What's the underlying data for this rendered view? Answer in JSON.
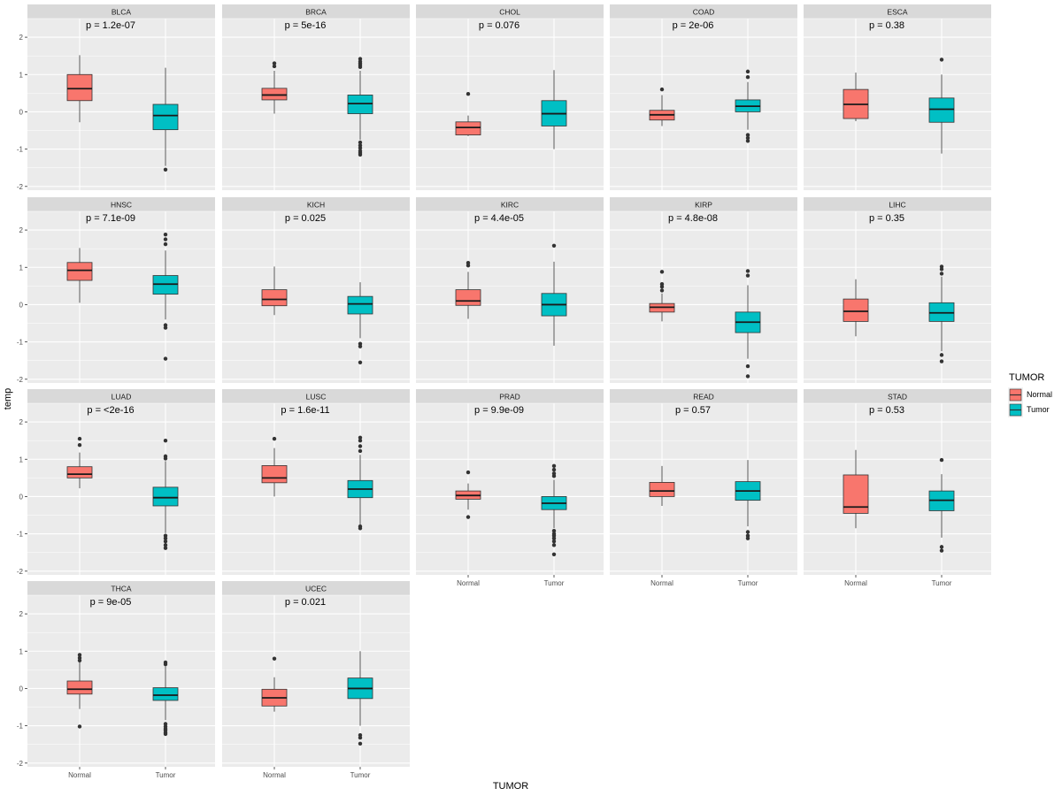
{
  "chart_data": {
    "type": "boxplot-facets",
    "y_axis_label": "temp",
    "x_axis_label": "TUMOR",
    "ylim": [
      -2.1,
      2.5
    ],
    "y_ticks": [
      -2,
      -1,
      0,
      1,
      2
    ],
    "categories": [
      "Normal",
      "Tumor"
    ],
    "legend": {
      "title": "TUMOR",
      "placement": "right",
      "items": [
        {
          "label": "Normal",
          "color": "#F8766D"
        },
        {
          "label": "Tumor",
          "color": "#00BFC4"
        }
      ]
    },
    "panels": [
      {
        "name": "BLCA",
        "pvalue": "p = 1.2e-07",
        "boxes": [
          {
            "group": "Normal",
            "min": -0.28,
            "q1": 0.3,
            "median": 0.62,
            "q3": 1.0,
            "max": 1.52,
            "outliers": []
          },
          {
            "group": "Tumor",
            "min": -1.45,
            "q1": -0.48,
            "median": -0.1,
            "q3": 0.2,
            "max": 1.18,
            "outliers": [
              -1.55
            ]
          }
        ]
      },
      {
        "name": "BRCA",
        "pvalue": "p = 5e-16",
        "boxes": [
          {
            "group": "Normal",
            "min": -0.05,
            "q1": 0.32,
            "median": 0.45,
            "q3": 0.63,
            "max": 1.1,
            "outliers": [
              1.22,
              1.3
            ]
          },
          {
            "group": "Tumor",
            "min": -0.75,
            "q1": -0.05,
            "median": 0.22,
            "q3": 0.45,
            "max": 1.1,
            "outliers": [
              1.2,
              1.25,
              1.3,
              1.35,
              1.42,
              -0.82,
              -0.9,
              -0.97,
              -1.05,
              -1.1,
              -1.15
            ]
          }
        ]
      },
      {
        "name": "CHOL",
        "pvalue": "p = 0.076",
        "boxes": [
          {
            "group": "Normal",
            "min": -0.65,
            "q1": -0.62,
            "median": -0.42,
            "q3": -0.27,
            "max": -0.1,
            "outliers": [
              0.48
            ]
          },
          {
            "group": "Tumor",
            "min": -1.0,
            "q1": -0.38,
            "median": -0.05,
            "q3": 0.3,
            "max": 1.12,
            "outliers": []
          }
        ]
      },
      {
        "name": "COAD",
        "pvalue": "p = 2e-06",
        "boxes": [
          {
            "group": "Normal",
            "min": -0.38,
            "q1": -0.22,
            "median": -0.08,
            "q3": 0.04,
            "max": 0.45,
            "outliers": [
              0.6
            ]
          },
          {
            "group": "Tumor",
            "min": -0.48,
            "q1": 0.0,
            "median": 0.15,
            "q3": 0.32,
            "max": 0.8,
            "outliers": [
              0.93,
              1.08,
              -0.62,
              -0.7,
              -0.78
            ]
          }
        ]
      },
      {
        "name": "ESCA",
        "pvalue": "p = 0.38",
        "boxes": [
          {
            "group": "Normal",
            "min": -0.25,
            "q1": -0.18,
            "median": 0.2,
            "q3": 0.6,
            "max": 1.05,
            "outliers": []
          },
          {
            "group": "Tumor",
            "min": -1.12,
            "q1": -0.28,
            "median": 0.07,
            "q3": 0.37,
            "max": 1.0,
            "outliers": [
              1.4
            ]
          }
        ]
      },
      {
        "name": "HNSC",
        "pvalue": "p = 7.1e-09",
        "boxes": [
          {
            "group": "Normal",
            "min": 0.05,
            "q1": 0.65,
            "median": 0.92,
            "q3": 1.13,
            "max": 1.52,
            "outliers": []
          },
          {
            "group": "Tumor",
            "min": -0.4,
            "q1": 0.28,
            "median": 0.55,
            "q3": 0.78,
            "max": 1.45,
            "outliers": [
              1.62,
              1.75,
              1.88,
              -0.55,
              -0.62,
              -1.45
            ]
          }
        ]
      },
      {
        "name": "KICH",
        "pvalue": "p = 0.025",
        "boxes": [
          {
            "group": "Normal",
            "min": -0.28,
            "q1": -0.03,
            "median": 0.14,
            "q3": 0.4,
            "max": 1.02,
            "outliers": []
          },
          {
            "group": "Tumor",
            "min": -0.9,
            "q1": -0.25,
            "median": 0.02,
            "q3": 0.22,
            "max": 0.6,
            "outliers": [
              -1.05,
              -1.12,
              -1.55
            ]
          }
        ]
      },
      {
        "name": "KIRC",
        "pvalue": "p = 4.4e-05",
        "boxes": [
          {
            "group": "Normal",
            "min": -0.38,
            "q1": -0.02,
            "median": 0.1,
            "q3": 0.4,
            "max": 0.88,
            "outliers": [
              1.05,
              1.12
            ]
          },
          {
            "group": "Tumor",
            "min": -1.1,
            "q1": -0.3,
            "median": 0.0,
            "q3": 0.3,
            "max": 1.15,
            "outliers": [
              1.58
            ]
          }
        ]
      },
      {
        "name": "KIRP",
        "pvalue": "p = 4.8e-08",
        "boxes": [
          {
            "group": "Normal",
            "min": -0.45,
            "q1": -0.2,
            "median": -0.07,
            "q3": 0.03,
            "max": 0.3,
            "outliers": [
              0.38,
              0.48,
              0.55,
              0.88
            ]
          },
          {
            "group": "Tumor",
            "min": -1.45,
            "q1": -0.75,
            "median": -0.47,
            "q3": -0.2,
            "max": 0.52,
            "outliers": [
              0.78,
              0.9,
              -1.65,
              -1.92
            ]
          }
        ]
      },
      {
        "name": "LIHC",
        "pvalue": "p = 0.35",
        "boxes": [
          {
            "group": "Normal",
            "min": -0.85,
            "q1": -0.45,
            "median": -0.18,
            "q3": 0.15,
            "max": 0.68,
            "outliers": []
          },
          {
            "group": "Tumor",
            "min": -1.25,
            "q1": -0.45,
            "median": -0.22,
            "q3": 0.05,
            "max": 0.75,
            "outliers": [
              0.83,
              0.95,
              1.02,
              -1.35,
              -1.52
            ]
          }
        ]
      },
      {
        "name": "LUAD",
        "pvalue": "p = <2e-16",
        "boxes": [
          {
            "group": "Normal",
            "min": 0.22,
            "q1": 0.5,
            "median": 0.6,
            "q3": 0.8,
            "max": 1.18,
            "outliers": [
              1.38,
              1.55
            ]
          },
          {
            "group": "Tumor",
            "min": -0.98,
            "q1": -0.25,
            "median": -0.03,
            "q3": 0.25,
            "max": 0.95,
            "outliers": [
              1.02,
              1.08,
              1.5,
              -1.05,
              -1.12,
              -1.2,
              -1.3,
              -1.38
            ]
          }
        ]
      },
      {
        "name": "LUSC",
        "pvalue": "p = 1.6e-11",
        "boxes": [
          {
            "group": "Normal",
            "min": 0.0,
            "q1": 0.37,
            "median": 0.5,
            "q3": 0.83,
            "max": 1.3,
            "outliers": [
              1.55
            ]
          },
          {
            "group": "Tumor",
            "min": -0.75,
            "q1": -0.03,
            "median": 0.2,
            "q3": 0.43,
            "max": 1.12,
            "outliers": [
              1.22,
              1.35,
              1.5,
              1.58,
              -0.8,
              -0.85
            ]
          }
        ]
      },
      {
        "name": "PRAD",
        "pvalue": "p = 9.9e-09",
        "boxes": [
          {
            "group": "Normal",
            "min": -0.35,
            "q1": -0.07,
            "median": 0.03,
            "q3": 0.15,
            "max": 0.35,
            "outliers": [
              0.65,
              -0.55
            ]
          },
          {
            "group": "Tumor",
            "min": -0.85,
            "q1": -0.35,
            "median": -0.18,
            "q3": 0.0,
            "max": 0.45,
            "outliers": [
              0.55,
              0.62,
              0.72,
              0.82,
              -0.92,
              -1.0,
              -1.05,
              -1.12,
              -1.2,
              -1.3,
              -1.55
            ]
          }
        ]
      },
      {
        "name": "READ",
        "pvalue": "p = 0.57",
        "boxes": [
          {
            "group": "Normal",
            "min": -0.25,
            "q1": 0.0,
            "median": 0.15,
            "q3": 0.38,
            "max": 0.82,
            "outliers": []
          },
          {
            "group": "Tumor",
            "min": -0.8,
            "q1": -0.1,
            "median": 0.15,
            "q3": 0.4,
            "max": 0.98,
            "outliers": [
              -0.95,
              -1.05,
              -1.12
            ]
          }
        ]
      },
      {
        "name": "STAD",
        "pvalue": "p = 0.53",
        "boxes": [
          {
            "group": "Normal",
            "min": -0.85,
            "q1": -0.45,
            "median": -0.28,
            "q3": 0.58,
            "max": 1.25,
            "outliers": []
          },
          {
            "group": "Tumor",
            "min": -1.1,
            "q1": -0.38,
            "median": -0.1,
            "q3": 0.15,
            "max": 0.6,
            "outliers": [
              0.98,
              -1.35,
              -1.45
            ]
          }
        ]
      },
      {
        "name": "THCA",
        "pvalue": "p = 9e-05",
        "boxes": [
          {
            "group": "Normal",
            "min": -0.55,
            "q1": -0.15,
            "median": -0.02,
            "q3": 0.2,
            "max": 0.7,
            "outliers": [
              0.75,
              0.82,
              0.9,
              -1.02
            ]
          },
          {
            "group": "Tumor",
            "min": -0.85,
            "q1": -0.32,
            "median": -0.18,
            "q3": 0.02,
            "max": 0.6,
            "outliers": [
              0.65,
              0.7,
              -0.95,
              -1.02,
              -1.08,
              -1.12,
              -1.18,
              -1.22
            ]
          }
        ]
      },
      {
        "name": "UCEC",
        "pvalue": "p = 0.021",
        "boxes": [
          {
            "group": "Normal",
            "min": -0.62,
            "q1": -0.47,
            "median": -0.25,
            "q3": -0.02,
            "max": 0.3,
            "outliers": [
              0.8
            ]
          },
          {
            "group": "Tumor",
            "min": -1.0,
            "q1": -0.27,
            "median": 0.0,
            "q3": 0.28,
            "max": 1.0,
            "outliers": [
              -1.25,
              -1.32,
              -1.48
            ]
          }
        ]
      }
    ]
  }
}
